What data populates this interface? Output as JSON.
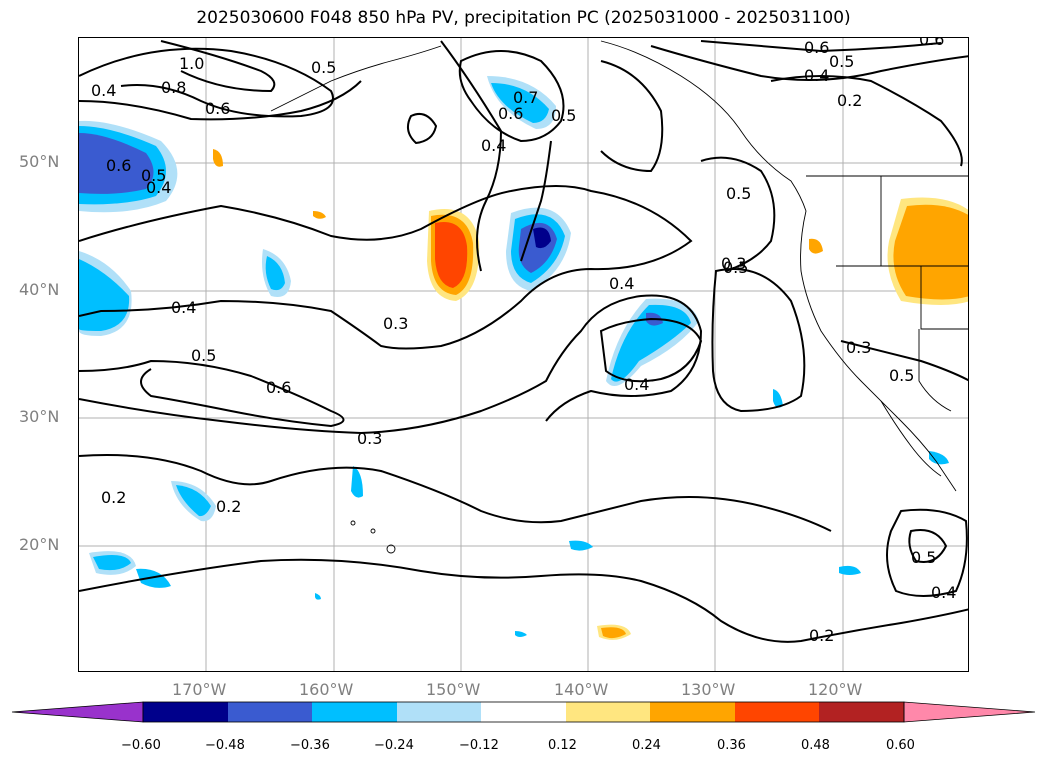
{
  "title": "2025030600 F048 850 hPa PV, precipitation PC (2025031000 - 2025031100)",
  "lat_labels": [
    "50°N",
    "40°N",
    "30°N",
    "20°N"
  ],
  "lon_labels": [
    "170°W",
    "160°W",
    "150°W",
    "140°W",
    "130°W",
    "120°W"
  ],
  "contour_labels": [
    "1.0",
    "0.8",
    "0.6",
    "0.4",
    "0.5",
    "0.4",
    "0.6",
    "0.7",
    "0.5",
    "0.6",
    "0.5",
    "0.4",
    "0.5",
    "0.4",
    "0.3",
    "0.4",
    "0.5",
    "0.6",
    "0.3",
    "0.2",
    "0.2",
    "0.4",
    "0.5",
    "0.6",
    "0.2",
    "0.5",
    "0.4",
    "0.5",
    "0.6",
    "0.3",
    "0.2",
    "0.5",
    "0.4",
    "0.3"
  ],
  "colorbar": {
    "ticks": [
      "−0.60",
      "−0.48",
      "−0.36",
      "−0.24",
      "−0.12",
      "0.12",
      "0.24",
      "0.36",
      "0.48",
      "0.60"
    ],
    "colors": [
      "#9932cc",
      "#00008b",
      "#3a5bd0",
      "#00bfff",
      "#b0e0f8",
      "#ffffff",
      "#ffe680",
      "#ffa500",
      "#ff4500",
      "#b22222",
      "#ff88aa"
    ]
  }
}
